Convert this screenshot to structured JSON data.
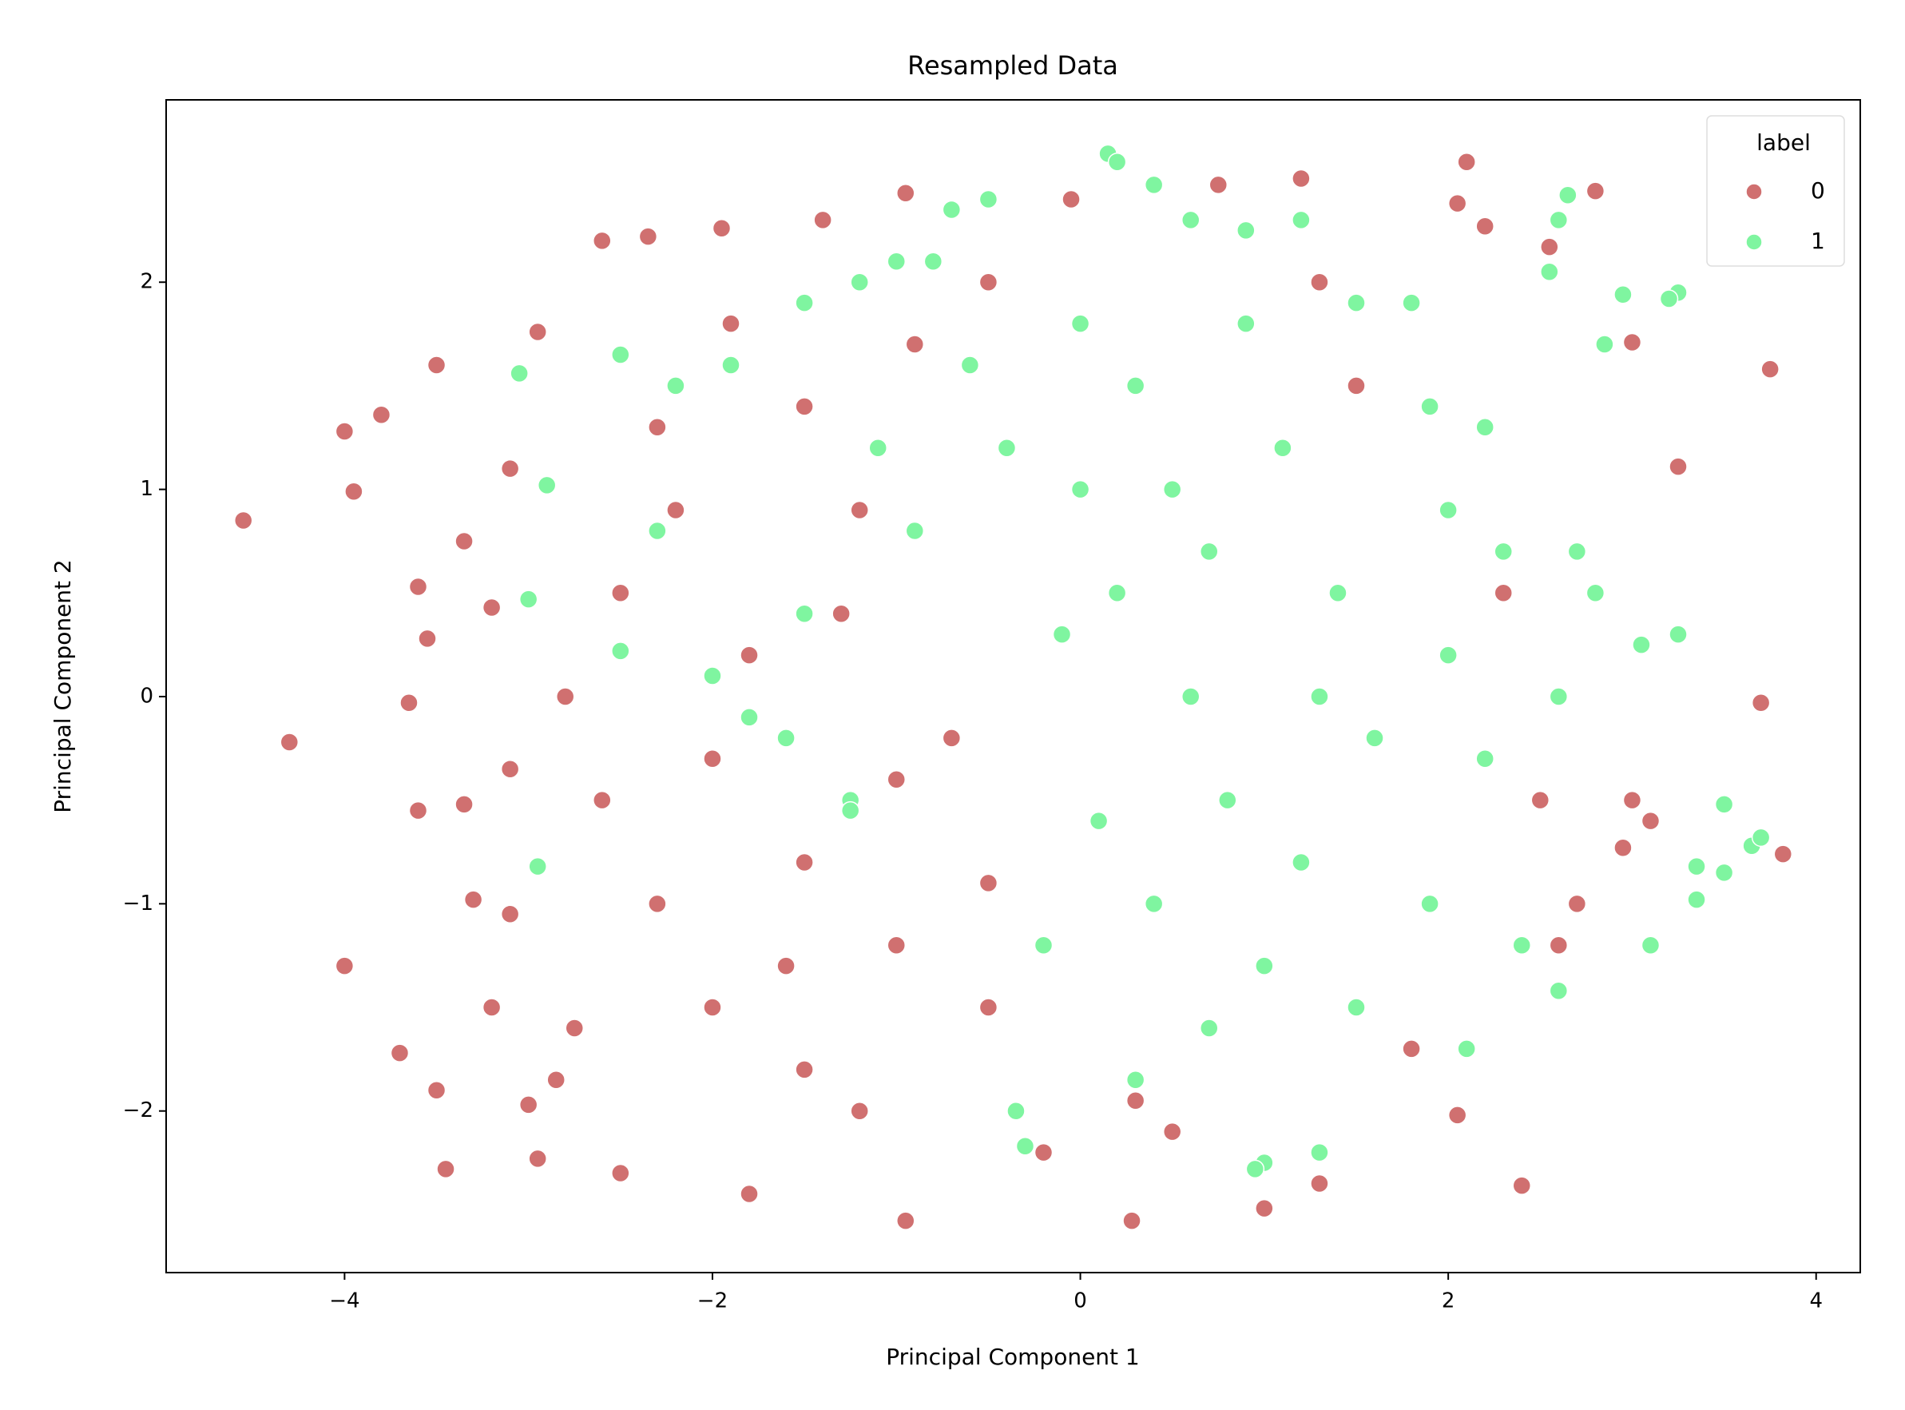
{
  "chart_data": {
    "type": "scatter",
    "title": "Resampled Data",
    "x_label": "Principal Component 1",
    "y_label": "Principal Component 2",
    "legend_title": "label",
    "legend": "upper right",
    "grid": false,
    "xlim": [
      -4.97,
      4.24
    ],
    "ylim": [
      -2.78,
      2.88
    ],
    "xticks": [
      {
        "value": -4,
        "label": "−4"
      },
      {
        "value": -2,
        "label": "−2"
      },
      0,
      2,
      4
    ],
    "yticks": [
      {
        "value": -2,
        "label": "−2"
      },
      {
        "value": -1,
        "label": "−1"
      },
      0,
      1,
      2
    ],
    "series": [
      {
        "name": "0",
        "color": "#d07070",
        "x": [
          -4.55,
          -4.3,
          -4,
          -3.95,
          -3.8,
          -4.0,
          -3.7,
          -3.5,
          -3.45,
          -3.5,
          -3.6,
          -3.55,
          -3.35,
          -3.2,
          -3.1,
          -2.95,
          -2.6,
          -2.35,
          -1.95,
          -1.4,
          -0.95,
          -0.05,
          0.75,
          1.2,
          2.1,
          2.05,
          2.2,
          2.8,
          2.55,
          3.75,
          3.25,
          3.0,
          3.7,
          3.82,
          3.0,
          2.95,
          3.1,
          2.4,
          2.05,
          1.3,
          1.0,
          0.28,
          -0.95,
          -1.8,
          -2.5,
          -2.95,
          -3.0,
          -2.85,
          -2.75,
          -3.2,
          -3.1,
          -3.3,
          -3.35,
          -3.6,
          -3.65,
          -3.1,
          -2.6,
          -2.3,
          -2.0,
          -1.5,
          -1.0,
          -0.5,
          -1.5,
          -2.0,
          -2.5,
          -2.2,
          -1.8,
          -1.3,
          -1.0,
          -0.5,
          0.3,
          0.5,
          -0.2,
          -1.2,
          -2.3,
          -1.9,
          -1.5,
          -0.9,
          -0.5,
          -2.8,
          -1.6,
          -0.7,
          -1.2,
          1.5,
          2.3,
          2.5,
          1.8,
          2.6,
          1.3,
          2.7
        ],
        "values": [
          0.85,
          -0.22,
          1.28,
          0.99,
          1.36,
          -1.3,
          -1.72,
          -1.9,
          -2.28,
          1.6,
          0.53,
          0.28,
          0.75,
          0.43,
          1.1,
          1.76,
          2.2,
          2.22,
          2.26,
          2.3,
          2.43,
          2.4,
          2.47,
          2.5,
          2.58,
          2.38,
          2.27,
          2.44,
          2.17,
          1.58,
          1.11,
          1.71,
          -0.03,
          -0.76,
          -0.5,
          -0.73,
          -0.6,
          -2.36,
          -2.02,
          -2.35,
          -2.47,
          -2.53,
          -2.53,
          -2.4,
          -2.3,
          -2.23,
          -1.97,
          -1.85,
          -1.6,
          -1.5,
          -1.05,
          -0.98,
          -0.52,
          -0.55,
          -0.03,
          -0.35,
          -0.5,
          -1.0,
          -1.5,
          -1.8,
          -1.2,
          -1.5,
          -0.8,
          -0.3,
          0.5,
          0.9,
          0.2,
          0.4,
          -0.4,
          -0.9,
          -1.95,
          -2.1,
          -2.2,
          -2.0,
          1.3,
          1.8,
          1.4,
          1.7,
          2.0,
          0.0,
          -1.3,
          -0.2,
          0.9,
          1.5,
          0.5,
          -0.5,
          -1.7,
          -1.2,
          2.0,
          -1.0
        ]
      },
      {
        "name": "1",
        "color": "#7ff5a0",
        "x": [
          0.15,
          0.2,
          0.4,
          1.2,
          0.6,
          0.9,
          -0.5,
          -0.7,
          2.6,
          2.65,
          2.55,
          3.25,
          3.2,
          2.95,
          2.85,
          3.05,
          3.25,
          3.5,
          3.65,
          3.7,
          3.35,
          3.1,
          3.5,
          3.35,
          2.6,
          1.0,
          0.95,
          1.3,
          0.3,
          -0.3,
          -0.35,
          -3.05,
          -2.9,
          -3.0,
          -2.95,
          -2.5,
          -2.3,
          -2.2,
          -2.5,
          -1.9,
          -1.5,
          -1.2,
          -1.0,
          -0.8,
          -2.0,
          -1.6,
          -1.25,
          -1.25,
          -1.8,
          -1.5,
          -0.9,
          -0.4,
          0.0,
          0.3,
          0.5,
          0.2,
          0.6,
          0.8,
          0.4,
          1.0,
          0.7,
          1.5,
          1.2,
          1.6,
          1.4,
          1.1,
          0.9,
          1.5,
          1.9,
          2.2,
          2.3,
          2.0,
          2.2,
          1.9,
          2.1,
          2.4,
          2.0,
          2.7,
          2.6,
          -0.1,
          0.1,
          -0.2,
          0.0,
          0.7,
          1.3,
          1.8,
          2.8,
          -0.6,
          -1.1
        ],
        "values": [
          2.62,
          2.58,
          2.47,
          2.3,
          2.3,
          2.25,
          2.4,
          2.35,
          2.3,
          2.42,
          2.05,
          1.95,
          1.92,
          1.94,
          1.7,
          0.25,
          0.3,
          -0.52,
          -0.72,
          -0.68,
          -0.98,
          -1.2,
          -0.85,
          -0.82,
          -1.42,
          -2.25,
          -2.28,
          -2.2,
          -1.85,
          -2.17,
          -2.0,
          1.56,
          1.02,
          0.47,
          -0.82,
          0.22,
          0.8,
          1.5,
          1.65,
          1.6,
          1.9,
          2.0,
          2.1,
          2.1,
          0.1,
          -0.2,
          -0.5,
          -0.55,
          -0.1,
          0.4,
          0.8,
          1.2,
          1.8,
          1.5,
          1.0,
          0.5,
          0.0,
          -0.5,
          -1.0,
          -1.3,
          -1.6,
          -1.5,
          -0.8,
          -0.2,
          0.5,
          1.2,
          1.8,
          1.9,
          1.4,
          1.3,
          0.7,
          0.2,
          -0.3,
          -1.0,
          -1.7,
          -1.2,
          0.9,
          0.7,
          0.0,
          0.3,
          -0.6,
          -1.2,
          1.0,
          0.7,
          0.0,
          1.9,
          0.5,
          1.6,
          1.2
        ]
      }
    ]
  }
}
